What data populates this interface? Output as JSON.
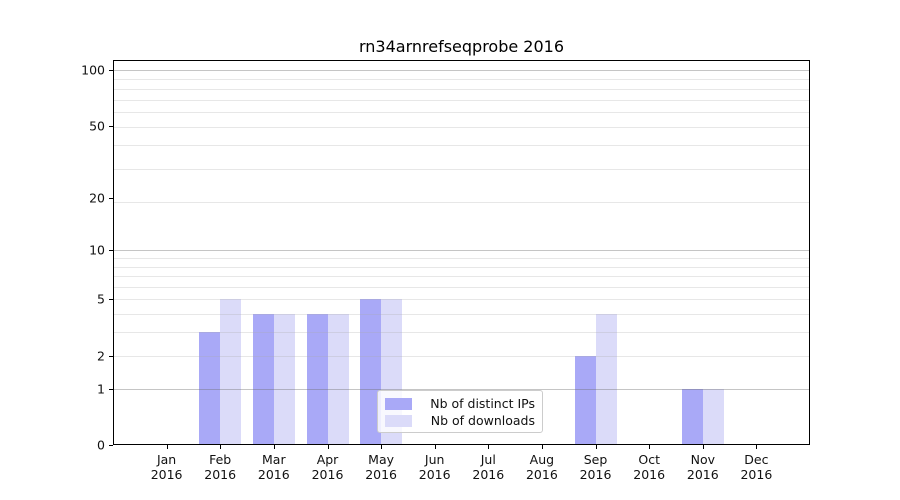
{
  "chart_data": {
    "type": "bar",
    "title": "rn34arnrefseqprobe 2016",
    "x": {
      "categories": [
        "Jan",
        "Feb",
        "Mar",
        "Apr",
        "May",
        "Jun",
        "Jul",
        "Aug",
        "Sep",
        "Oct",
        "Nov",
        "Dec"
      ],
      "year": "2016"
    },
    "y": {
      "scale": "log1p",
      "ticks": [
        0,
        1,
        2,
        5,
        10,
        20,
        50,
        100
      ],
      "major_gridlines": [
        1,
        10,
        100
      ],
      "lim": [
        0,
        112
      ],
      "grid": "both",
      "label": ""
    },
    "series": [
      {
        "name": "Nb of distinct IPs",
        "color": "#a9a9f7",
        "values": [
          0,
          3,
          4,
          4,
          5,
          0,
          0,
          0,
          2,
          0,
          1,
          0
        ]
      },
      {
        "name": "Nb of downloads",
        "color": "#dbdbf9",
        "values": [
          0,
          5,
          4,
          4,
          5,
          0,
          0,
          0,
          4,
          0,
          1,
          0
        ]
      }
    ],
    "legend": {
      "position": "lower center",
      "entries": [
        "Nb of distinct IPs",
        "Nb of downloads"
      ]
    }
  }
}
